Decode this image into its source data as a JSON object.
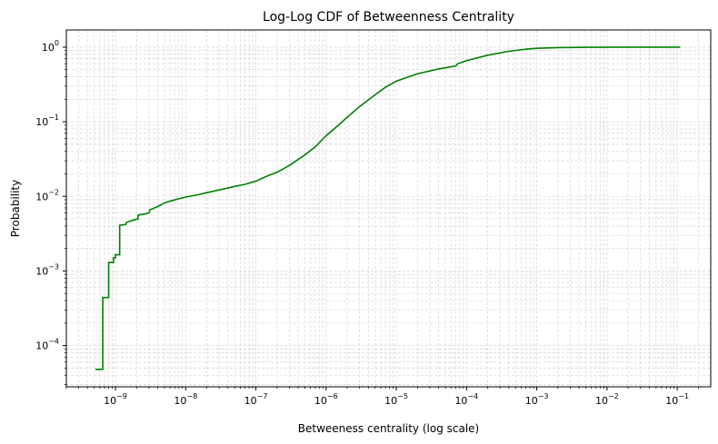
{
  "chart_data": {
    "type": "line",
    "title": "Log-Log CDF of Betweenness Centrality",
    "xlabel": "Betweeness centrality (log scale)",
    "ylabel": "Probability",
    "xscale": "log",
    "yscale": "log",
    "xlim": [
      2e-10,
      0.3
    ],
    "ylim": [
      2.8e-05,
      1.7
    ],
    "grid": true,
    "grid_style": "dashed, major and minor",
    "line_color": "#008000",
    "x_ticks": [
      {
        "value": 1e-09,
        "base": "10",
        "exp": "−9"
      },
      {
        "value": 1e-08,
        "base": "10",
        "exp": "−8"
      },
      {
        "value": 1e-07,
        "base": "10",
        "exp": "−7"
      },
      {
        "value": 1e-06,
        "base": "10",
        "exp": "−6"
      },
      {
        "value": 1e-05,
        "base": "10",
        "exp": "−5"
      },
      {
        "value": 0.0001,
        "base": "10",
        "exp": "−4"
      },
      {
        "value": 0.001,
        "base": "10",
        "exp": "−3"
      },
      {
        "value": 0.01,
        "base": "10",
        "exp": "−2"
      },
      {
        "value": 0.1,
        "base": "10",
        "exp": "−1"
      }
    ],
    "y_ticks": [
      {
        "value": 0.0001,
        "base": "10",
        "exp": "−4"
      },
      {
        "value": 0.001,
        "base": "10",
        "exp": "−3"
      },
      {
        "value": 0.01,
        "base": "10",
        "exp": "−2"
      },
      {
        "value": 0.1,
        "base": "10",
        "exp": "−1"
      },
      {
        "value": 1,
        "base": "10",
        "exp": "0"
      }
    ],
    "series": [
      {
        "points": [
          [
            5.2e-10,
            4.8e-05
          ],
          [
            6.6e-10,
            4.8e-05
          ],
          [
            6.6e-10,
            0.00044
          ],
          [
            8e-10,
            0.00044
          ],
          [
            8e-10,
            0.0013
          ],
          [
            9.4e-10,
            0.0013
          ],
          [
            9.4e-10,
            0.0015
          ],
          [
            1e-09,
            0.0015
          ],
          [
            1e-09,
            0.00165
          ],
          [
            1.15e-09,
            0.00165
          ],
          [
            1.15e-09,
            0.0041
          ],
          [
            1.4e-09,
            0.0042
          ],
          [
            1.45e-09,
            0.0045
          ],
          [
            1.8e-09,
            0.0048
          ],
          [
            2.1e-09,
            0.005
          ],
          [
            2.1e-09,
            0.0056
          ],
          [
            2.6e-09,
            0.0058
          ],
          [
            3e-09,
            0.006
          ],
          [
            3.1e-09,
            0.0066
          ],
          [
            4e-09,
            0.0073
          ],
          [
            5e-09,
            0.0082
          ],
          [
            6.5e-09,
            0.0088
          ],
          [
            8e-09,
            0.0093
          ],
          [
            1e-08,
            0.0098
          ],
          [
            1.5e-08,
            0.0105
          ],
          [
            2e-08,
            0.0112
          ],
          [
            3e-08,
            0.0122
          ],
          [
            5e-08,
            0.0136
          ],
          [
            7e-08,
            0.0145
          ],
          [
            1e-07,
            0.016
          ],
          [
            1.5e-07,
            0.019
          ],
          [
            2e-07,
            0.021
          ],
          [
            3e-07,
            0.026
          ],
          [
            5e-07,
            0.036
          ],
          [
            7e-07,
            0.046
          ],
          [
            1e-06,
            0.065
          ],
          [
            1.5e-06,
            0.09
          ],
          [
            2e-06,
            0.115
          ],
          [
            3e-06,
            0.16
          ],
          [
            5e-06,
            0.23
          ],
          [
            7e-06,
            0.29
          ],
          [
            1e-05,
            0.35
          ],
          [
            2e-05,
            0.44
          ],
          [
            4e-05,
            0.51
          ],
          [
            7e-05,
            0.56
          ],
          [
            7.5e-05,
            0.6
          ],
          [
            0.0001,
            0.66
          ],
          [
            0.0002,
            0.78
          ],
          [
            0.0004,
            0.88
          ],
          [
            0.0007,
            0.94
          ],
          [
            0.001,
            0.965
          ],
          [
            0.002,
            0.985
          ],
          [
            0.005,
            0.995
          ],
          [
            0.02,
            1.0
          ],
          [
            0.11,
            1.0
          ]
        ]
      }
    ]
  }
}
